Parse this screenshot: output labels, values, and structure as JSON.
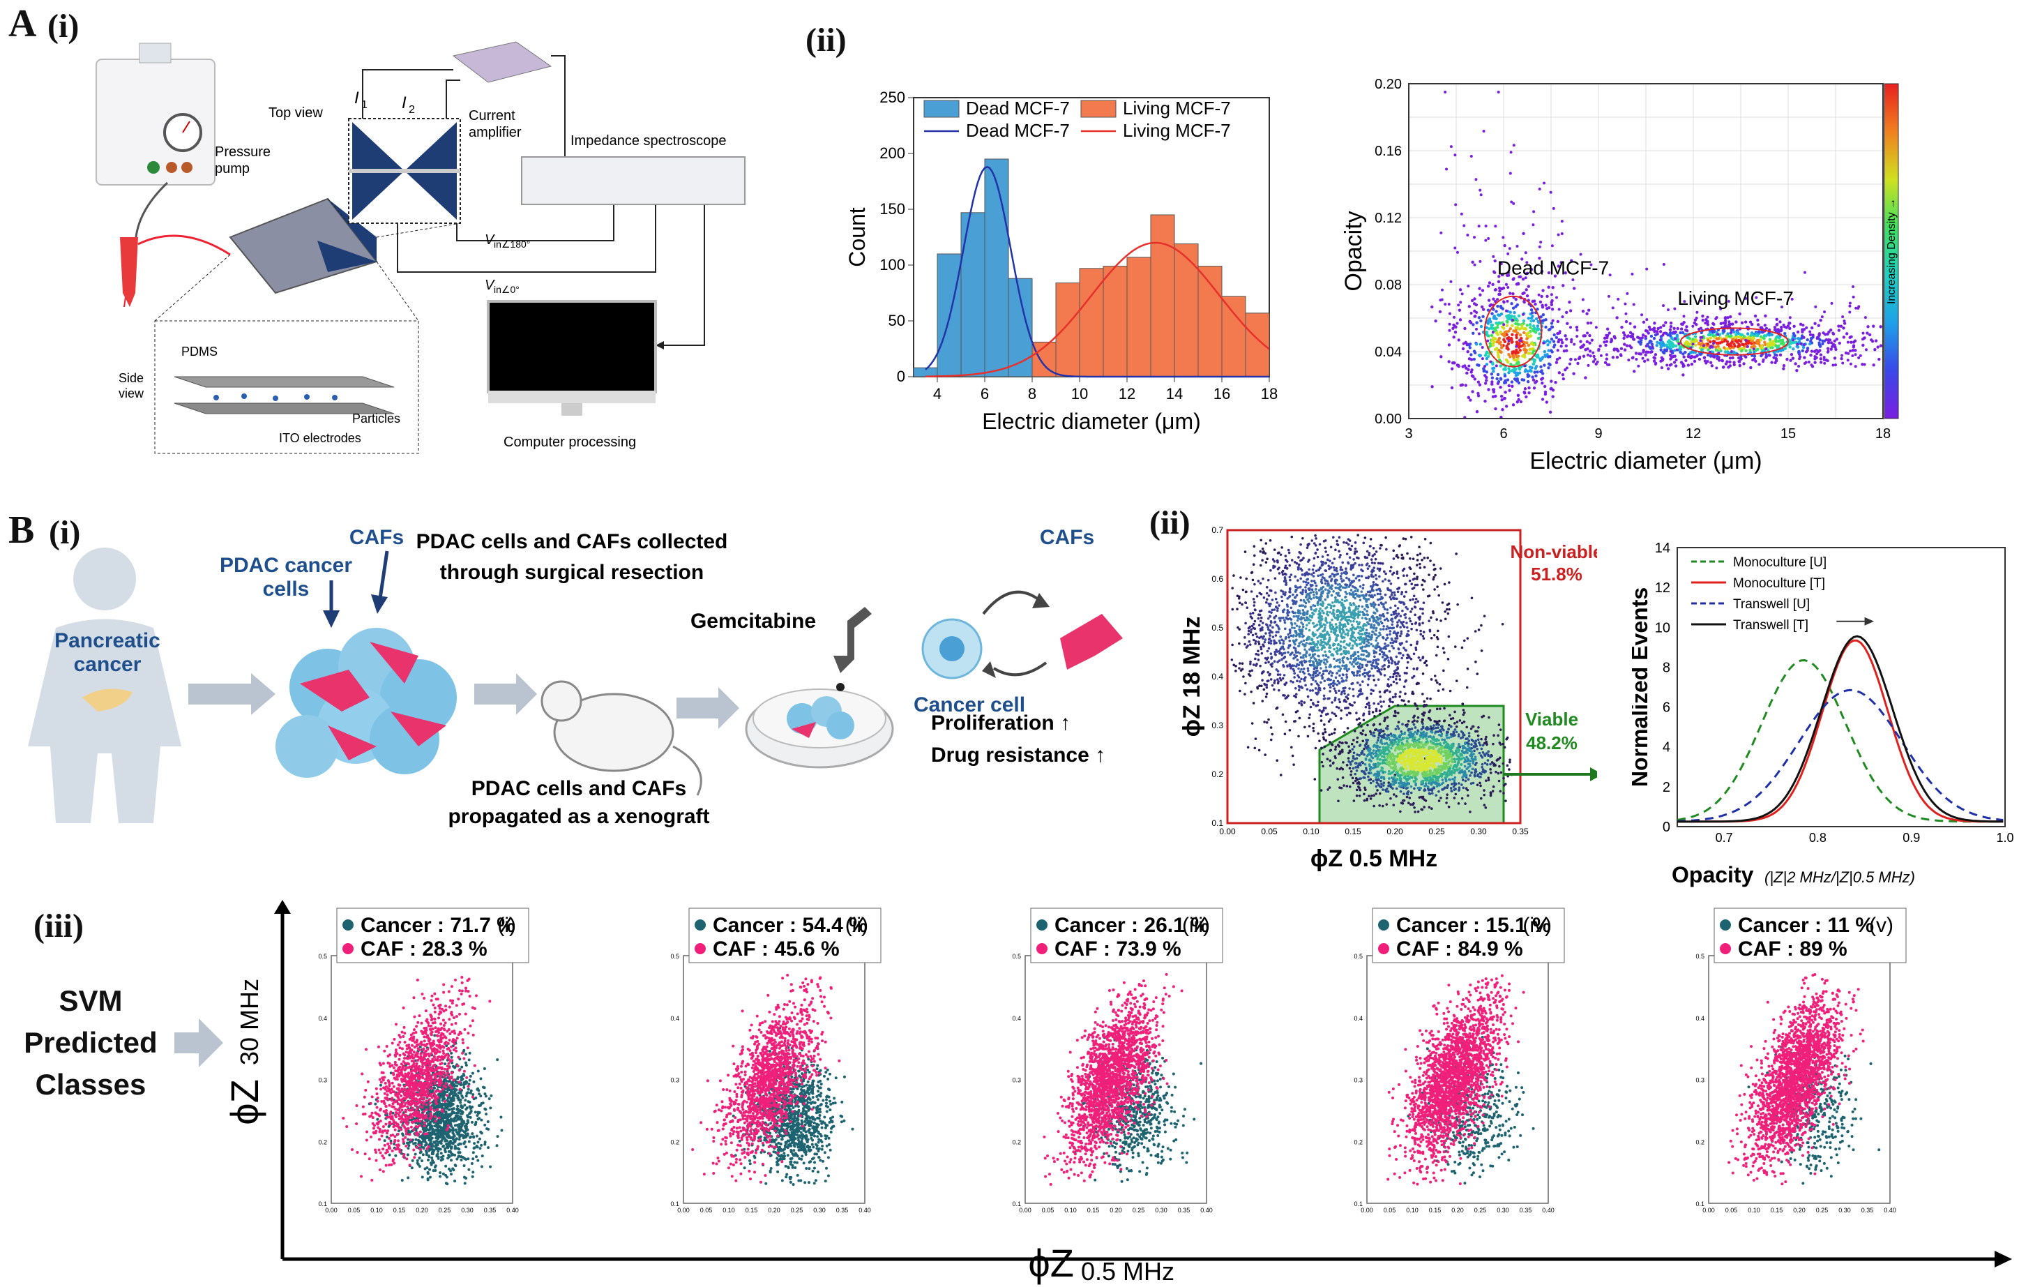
{
  "panels": {
    "A": "A",
    "A_i": "(i)",
    "A_ii": "(ii)",
    "B": "B",
    "B_i": "(i)",
    "B_ii": "(ii)",
    "B_iii": "(iii)"
  },
  "setup": {
    "pressure_pump": "Pressure pump",
    "top_view": "Top view",
    "i1": "I",
    "i1_sub": "1",
    "i2": "I",
    "i2_sub": "2",
    "current_amplifier": "Current amplifier",
    "impedance_spectroscope": "Impedance spectroscope",
    "vin180": "V",
    "vin180_rest": "in∠180°",
    "vin0": "V",
    "vin0_rest": "in∠0°",
    "side_view": "Side view",
    "pdms": "PDMS",
    "particles": "Particles",
    "ito": "ITO electrodes",
    "computer": "Computer processing"
  },
  "bio": {
    "pancreatic_cancer": "Pancreatic cancer",
    "caf_label": "CAFs",
    "pdac_cancer_cells": "PDAC cancer cells",
    "collected": "PDAC cells and CAFs collected through surgical resection",
    "xenograft": "PDAC cells and CAFs propagated as a xenograft",
    "gemcitabine": "Gemcitabine",
    "cafs_right": "CAFs",
    "cancer_cell": "Cancer cell",
    "proliferation": "Proliferation",
    "drug_resistance": "Drug resistance"
  },
  "svm": {
    "label": "SVM Predicted Classes",
    "yaxis": "ϕZ",
    "yaxis_sub": "30 MHz",
    "xaxis": "ϕZ",
    "xaxis_sub": "0.5 MHz"
  },
  "chart_data": [
    {
      "id": "A-ii-histogram",
      "type": "bar",
      "xlabel": "Electric diameter (μm)",
      "ylabel": "Count",
      "xlim": [
        3,
        18
      ],
      "ylim": [
        0,
        250
      ],
      "xticks": [
        4,
        6,
        8,
        10,
        12,
        14,
        16,
        18
      ],
      "yticks": [
        0,
        50,
        100,
        150,
        200,
        250
      ],
      "legend": [
        "Dead MCF-7",
        "Living MCF-7",
        "Dead MCF-7",
        "Living MCF-7"
      ],
      "series": [
        {
          "name": "Dead MCF-7",
          "color": "#4a9fd4",
          "bin_width": 1,
          "centers": [
            3.5,
            4.5,
            5.5,
            6.5,
            7.5,
            8.5
          ],
          "values": [
            8,
            110,
            147,
            195,
            88,
            15
          ]
        },
        {
          "name": "Living MCF-7",
          "color": "#f27a4e",
          "bin_width": 1,
          "centers": [
            8.5,
            9.5,
            10.5,
            11.5,
            12.5,
            13.5,
            14.5,
            15.5,
            16.5,
            17.5
          ],
          "values": [
            31,
            84,
            97,
            99,
            107,
            145,
            119,
            99,
            72,
            57
          ]
        }
      ],
      "fits": [
        {
          "name": "Dead MCF-7",
          "color": "#2233aa",
          "mean": 6.1,
          "sd": 1.0,
          "peak": 188
        },
        {
          "name": "Living MCF-7",
          "color": "#e8302a",
          "mean": 13.2,
          "sd": 2.7,
          "peak": 120
        }
      ]
    },
    {
      "id": "A-ii-scatter",
      "type": "scatter",
      "xlabel": "Electric diameter (μm)",
      "ylabel": "Opacity",
      "xlim": [
        3,
        18
      ],
      "ylim": [
        0,
        0.2
      ],
      "xticks": [
        "3",
        "6",
        "9",
        "12",
        "15",
        "18"
      ],
      "yticks": [
        "0.00",
        "0.04",
        "0.08",
        "0.12",
        "0.16",
        "0.20"
      ],
      "colorbar_label": "Increasing Density →",
      "annotations": [
        "Dead MCF-7",
        "Living MCF-7"
      ],
      "clusters": [
        {
          "name": "Dead MCF-7",
          "cx": 6.3,
          "cy": 0.045,
          "sx": 0.7,
          "sy": 0.012
        },
        {
          "name": "Living MCF-7",
          "cx": 13.2,
          "cy": 0.045,
          "sx": 1.5,
          "sy": 0.004
        }
      ]
    },
    {
      "id": "B-ii-scatter",
      "type": "scatter",
      "xlabel": "ϕZ 0.5 MHz",
      "ylabel": "ϕZ 18 MHz",
      "xlim": [
        0,
        0.35
      ],
      "ylim": [
        0.1,
        0.7
      ],
      "xticks": [
        "0.00",
        "0.05",
        "0.10",
        "0.15",
        "0.20",
        "0.25",
        "0.30",
        "0.35"
      ],
      "yticks": [
        "0.1",
        "0.2",
        "0.3",
        "0.4",
        "0.5",
        "0.6",
        "0.7"
      ],
      "gates": [
        {
          "name": "Non-viable",
          "value": "51.8%",
          "color": "#cc1f1f"
        },
        {
          "name": "Viable",
          "value": "48.2%",
          "color": "#1f8a1f"
        }
      ],
      "clusters": [
        {
          "name": "Non-viable",
          "cx": 0.13,
          "cy": 0.5,
          "sx": 0.06,
          "sy": 0.1
        },
        {
          "name": "Viable",
          "cx": 0.23,
          "cy": 0.23,
          "sx": 0.045,
          "sy": 0.04
        }
      ]
    },
    {
      "id": "B-ii-line",
      "type": "line",
      "xlabel": "Opacity",
      "ylabel": "Normalized Events",
      "xlim": [
        0.65,
        1.0
      ],
      "ylim": [
        0,
        14
      ],
      "xticks": [
        "0.7",
        "0.8",
        "0.9",
        "1.0"
      ],
      "yticks": [
        "0",
        "2",
        "4",
        "6",
        "8",
        "10",
        "12",
        "14"
      ],
      "series": [
        {
          "name": "Monoculture [U]",
          "color": "#1f8a1f",
          "dash": "12,8",
          "mean": 0.785,
          "sd": 0.045,
          "peak": 8.1
        },
        {
          "name": "Monoculture [T]",
          "color": "#e0201c",
          "dash": "",
          "mean": 0.84,
          "sd": 0.035,
          "peak": 9.1
        },
        {
          "name": "Transwell [U]",
          "color": "#1f2fa8",
          "dash": "12,8",
          "mean": 0.835,
          "sd": 0.055,
          "peak": 6.6
        },
        {
          "name": "Transwell [T]",
          "color": "#111111",
          "dash": "",
          "mean": 0.842,
          "sd": 0.038,
          "peak": 9.3
        }
      ]
    },
    {
      "id": "B-iii-svm",
      "type": "scatter",
      "xlim": [
        0,
        0.4
      ],
      "ylim": [
        0.1,
        0.5
      ],
      "xticks": [
        "0.00",
        "0.05",
        "0.10",
        "0.15",
        "0.20",
        "0.25",
        "0.30",
        "0.35",
        "0.40"
      ],
      "yticks": [
        "0.1",
        "0.2",
        "0.3",
        "0.4",
        "0.5"
      ],
      "plots": [
        {
          "tag": "(i)",
          "cancer": "Cancer : 71.7 %",
          "caf": "CAF     : 28.3 %",
          "cancer_frac": 0.717
        },
        {
          "tag": "(ii)",
          "cancer": "Cancer : 54.4 %",
          "caf": "CAF     : 45.6 %",
          "cancer_frac": 0.544
        },
        {
          "tag": "(iii)",
          "cancer": "Cancer : 26.1 %",
          "caf": "CAF     : 73.9 %",
          "cancer_frac": 0.261
        },
        {
          "tag": "(iv)",
          "cancer": "Cancer : 15.1 %",
          "caf": "CAF     : 84.9 %",
          "cancer_frac": 0.151
        },
        {
          "tag": "(v)",
          "cancer": "Cancer : 11 %",
          "caf": "CAF     : 89 %",
          "cancer_frac": 0.11
        }
      ]
    }
  ]
}
